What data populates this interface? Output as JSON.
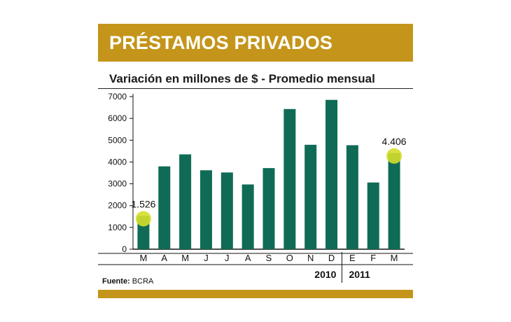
{
  "header": {
    "title": "PRÉSTAMOS PRIVADOS"
  },
  "chart_data": {
    "type": "bar",
    "title": "PRÉSTAMOS PRIVADOS",
    "subtitle": "Variación en millones de $ - Promedio mensual",
    "categories": [
      "M",
      "A",
      "M",
      "J",
      "J",
      "A",
      "S",
      "O",
      "N",
      "D",
      "E",
      "F",
      "M"
    ],
    "values": [
      1526,
      3800,
      4350,
      3620,
      3520,
      2970,
      3720,
      6430,
      4790,
      6850,
      4770,
      3060,
      4406
    ],
    "ylim": [
      0,
      7000
    ],
    "yticks": [
      "0",
      "1000",
      "2000",
      "3000",
      "4000",
      "5000",
      "6000",
      "7000"
    ],
    "year_labels": [
      "2010",
      "2011"
    ],
    "annotations": [
      {
        "index": 0,
        "label": "1.526"
      },
      {
        "index": 12,
        "label": "4.406"
      }
    ],
    "bar_color": "#0f6b55",
    "highlight_color": "#d4df2a",
    "accent_color": "#c4951a",
    "grid": false
  },
  "footer": {
    "source_label": "Fuente:",
    "source_value": "BCRA"
  }
}
